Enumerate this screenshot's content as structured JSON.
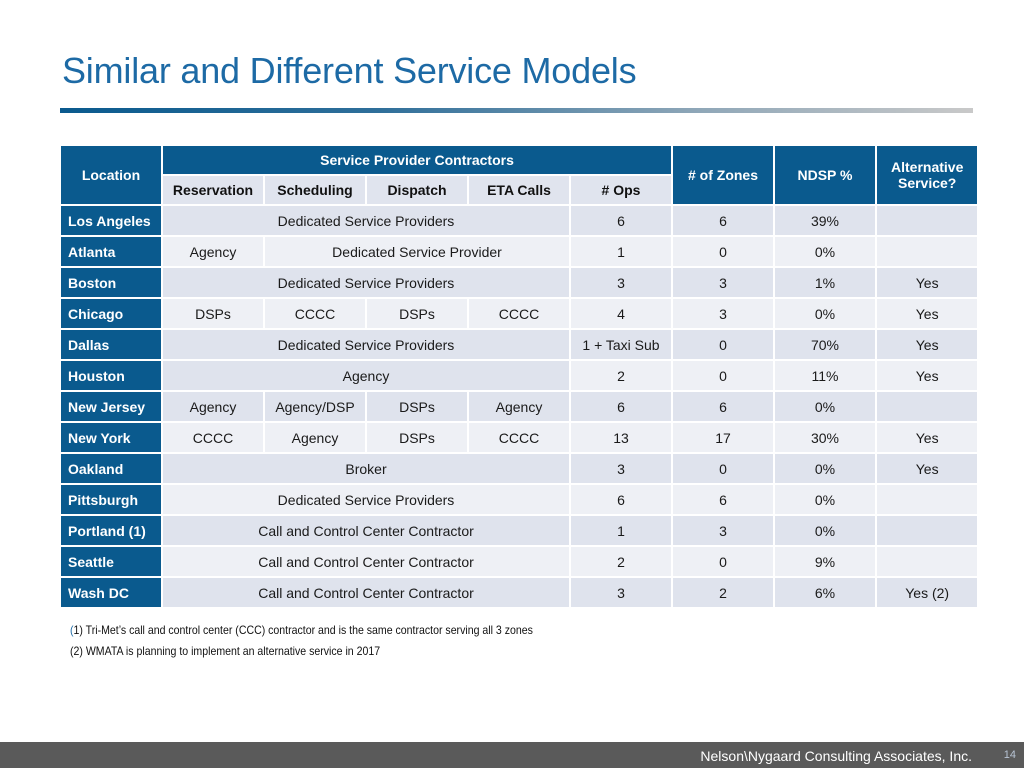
{
  "title": "Similar and Different Service Models",
  "table": {
    "headers": {
      "location": "Location",
      "service_provider_contractors": "Service Provider Contractors",
      "zones": "# of Zones",
      "ndsp": "NDSP %",
      "alternative": "Alternative Service?",
      "sub": [
        "Reservation",
        "Scheduling",
        "Dispatch",
        "ETA Calls",
        "# Ops"
      ]
    },
    "rows": [
      {
        "location": "Los Angeles",
        "services": [
          "Dedicated Service Providers"
        ],
        "ops": "6",
        "zones": "6",
        "ndsp": "39%",
        "alt": ""
      },
      {
        "location": "Atlanta",
        "services": [
          "Agency",
          "Dedicated Service Provider"
        ],
        "ops": "1",
        "zones": "0",
        "ndsp": "0%",
        "alt": ""
      },
      {
        "location": "Boston",
        "services": [
          "Dedicated Service Providers"
        ],
        "ops": "3",
        "zones": "3",
        "ndsp": "1%",
        "alt": "Yes"
      },
      {
        "location": "Chicago",
        "services": [
          "DSPs",
          "CCCC",
          "DSPs",
          "CCCC"
        ],
        "ops": "4",
        "zones": "3",
        "ndsp": "0%",
        "alt": "Yes"
      },
      {
        "location": "Dallas",
        "services": [
          "Dedicated Service Providers"
        ],
        "ops": "1 + Taxi Sub",
        "zones": "0",
        "ndsp": "70%",
        "alt": "Yes"
      },
      {
        "location": "Houston",
        "services": [
          "Agency"
        ],
        "ops": "2",
        "zones": "0",
        "ndsp": "11%",
        "alt": "Yes"
      },
      {
        "location": "New Jersey",
        "services": [
          "Agency",
          "Agency/DSP",
          "DSPs",
          "Agency"
        ],
        "ops": "6",
        "zones": "6",
        "ndsp": "0%",
        "alt": ""
      },
      {
        "location": "New York",
        "services": [
          "CCCC",
          "Agency",
          "DSPs",
          "CCCC"
        ],
        "ops": "13",
        "zones": "17",
        "ndsp": "30%",
        "alt": "Yes"
      },
      {
        "location": "Oakland",
        "services": [
          "Broker"
        ],
        "ops": "3",
        "zones": "0",
        "ndsp": "0%",
        "alt": "Yes"
      },
      {
        "location": "Pittsburgh",
        "services": [
          "Dedicated Service Providers"
        ],
        "ops": "6",
        "zones": "6",
        "ndsp": "0%",
        "alt": ""
      },
      {
        "location": "Portland (1)",
        "services": [
          "Call and Control Center Contractor"
        ],
        "ops": "1",
        "zones": "3",
        "ndsp": "0%",
        "alt": ""
      },
      {
        "location": "Seattle",
        "services": [
          "Call and Control Center Contractor"
        ],
        "ops": "2",
        "zones": "0",
        "ndsp": "9%",
        "alt": ""
      },
      {
        "location": "Wash DC",
        "services": [
          "Call and Control Center Contractor"
        ],
        "ops": "3",
        "zones": "2",
        "ndsp": "6%",
        "alt": "Yes (2)"
      }
    ]
  },
  "notes": {
    "note1_open": "(",
    "note1_rest": "1) Tri-Met’s call and control center (CCC) contractor and is the same contractor serving all 3 zones",
    "note2": "(2) WMATA is planning to implement an alternative service in 2017"
  },
  "footer": {
    "company": "Nelson\\Nygaard Consulting Associates, Inc.",
    "page": "14"
  }
}
